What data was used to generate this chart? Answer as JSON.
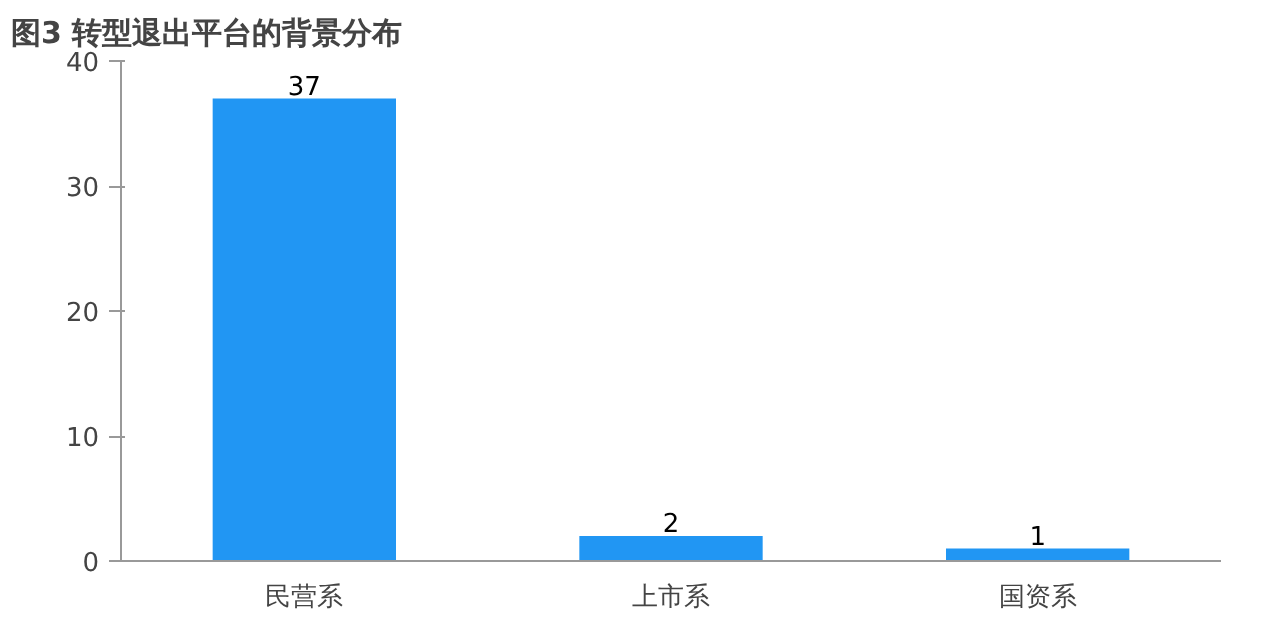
{
  "chart_data": {
    "type": "bar",
    "title": "图3 转型退出平台的背景分布",
    "categories": [
      "民营系",
      "上市系",
      "国资系"
    ],
    "values": [
      37,
      2,
      1
    ],
    "color": "#2196f3",
    "ylim": [
      0,
      40
    ],
    "yticks": [
      0,
      10,
      20,
      30,
      40
    ],
    "data_labels": true,
    "grid": false
  }
}
